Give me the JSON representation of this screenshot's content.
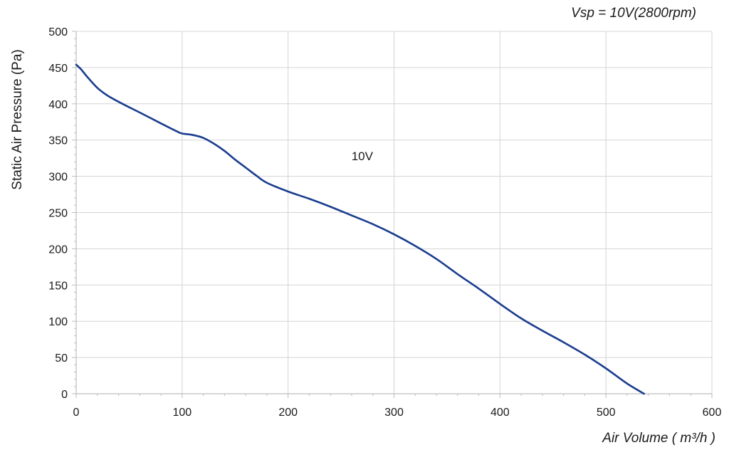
{
  "chart_data": {
    "type": "line",
    "subtitle": "Vsp = 10V(2800rpm)",
    "xlabel": "Air Volume ( m³/h )",
    "ylabel": "Static Air Pressure  (Pa)",
    "xlim": [
      0,
      600
    ],
    "ylim": [
      0,
      500
    ],
    "x_ticks": [
      0,
      100,
      200,
      300,
      400,
      500,
      600
    ],
    "y_ticks": [
      0,
      50,
      100,
      150,
      200,
      250,
      300,
      350,
      400,
      450,
      500
    ],
    "grid": true,
    "annotations": [
      {
        "text": "10V",
        "x": 270,
        "y": 322
      }
    ],
    "series": [
      {
        "color": "#1a3d8f",
        "points": [
          [
            0,
            454
          ],
          [
            5,
            447
          ],
          [
            10,
            438
          ],
          [
            20,
            422
          ],
          [
            30,
            411
          ],
          [
            45,
            399
          ],
          [
            60,
            388
          ],
          [
            80,
            373
          ],
          [
            95,
            362
          ],
          [
            100,
            359
          ],
          [
            110,
            357
          ],
          [
            120,
            353
          ],
          [
            130,
            345
          ],
          [
            140,
            335
          ],
          [
            150,
            323
          ],
          [
            160,
            312
          ],
          [
            170,
            301
          ],
          [
            180,
            291
          ],
          [
            200,
            279
          ],
          [
            220,
            269
          ],
          [
            240,
            258
          ],
          [
            260,
            246
          ],
          [
            280,
            234
          ],
          [
            300,
            220
          ],
          [
            320,
            204
          ],
          [
            340,
            186
          ],
          [
            360,
            165
          ],
          [
            380,
            145
          ],
          [
            400,
            124
          ],
          [
            420,
            104
          ],
          [
            440,
            87
          ],
          [
            460,
            71
          ],
          [
            480,
            54
          ],
          [
            500,
            35
          ],
          [
            520,
            14
          ],
          [
            536,
            0
          ]
        ]
      }
    ]
  }
}
